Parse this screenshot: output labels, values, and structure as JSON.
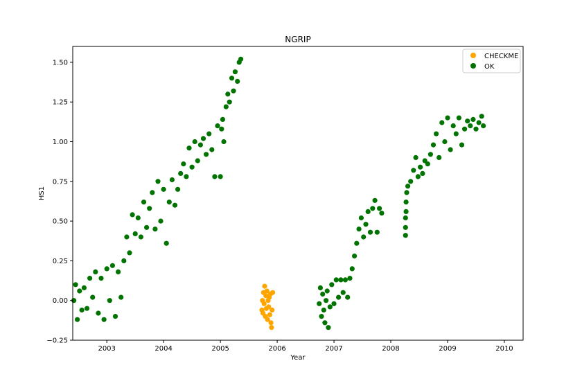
{
  "chart_data": {
    "type": "scatter",
    "title": "NGRIP",
    "xlabel": "Year",
    "ylabel": "HS1",
    "xlim": [
      2002.4,
      2010.33
    ],
    "ylim": [
      -0.25,
      1.6
    ],
    "x_ticks": [
      2003,
      2004,
      2005,
      2006,
      2007,
      2008,
      2009,
      2010
    ],
    "y_ticks": [
      -0.25,
      0.0,
      0.25,
      0.5,
      0.75,
      1.0,
      1.25,
      1.5
    ],
    "y_tick_labels": [
      "−0.25",
      "0.00",
      "0.25",
      "0.50",
      "0.75",
      "1.00",
      "1.25",
      "1.50"
    ],
    "grid": false,
    "legend_position": "top-right",
    "series": [
      {
        "name": "CHECKME",
        "color": "#ffa500",
        "points": [
          [
            2005.73,
            -0.06
          ],
          [
            2005.74,
            0.0
          ],
          [
            2005.75,
            -0.08
          ],
          [
            2005.76,
            0.05
          ],
          [
            2005.77,
            -0.02
          ],
          [
            2005.78,
            0.09
          ],
          [
            2005.79,
            -0.1
          ],
          [
            2005.8,
            0.03
          ],
          [
            2005.81,
            -0.05
          ],
          [
            2005.82,
            0.06
          ],
          [
            2005.83,
            -0.12
          ],
          [
            2005.84,
            0.0
          ],
          [
            2005.85,
            -0.04
          ],
          [
            2005.86,
            0.02
          ],
          [
            2005.87,
            -0.09
          ],
          [
            2005.88,
            0.04
          ],
          [
            2005.89,
            -0.14
          ],
          [
            2005.9,
            -0.17
          ],
          [
            2005.91,
            -0.06
          ],
          [
            2005.92,
            0.05
          ]
        ]
      },
      {
        "name": "OK",
        "color": "#007300",
        "points": [
          [
            2002.42,
            0.0
          ],
          [
            2002.45,
            0.1
          ],
          [
            2002.48,
            -0.12
          ],
          [
            2002.52,
            0.06
          ],
          [
            2002.56,
            -0.06
          ],
          [
            2002.6,
            0.08
          ],
          [
            2002.65,
            -0.05
          ],
          [
            2002.7,
            0.14
          ],
          [
            2002.75,
            0.02
          ],
          [
            2002.8,
            0.18
          ],
          [
            2002.85,
            -0.08
          ],
          [
            2002.9,
            0.14
          ],
          [
            2002.95,
            -0.12
          ],
          [
            2003.0,
            0.2
          ],
          [
            2003.05,
            0.0
          ],
          [
            2003.1,
            0.22
          ],
          [
            2003.15,
            -0.1
          ],
          [
            2003.2,
            0.18
          ],
          [
            2003.25,
            0.02
          ],
          [
            2003.3,
            0.25
          ],
          [
            2003.35,
            0.4
          ],
          [
            2003.4,
            0.3
          ],
          [
            2003.45,
            0.54
          ],
          [
            2003.5,
            0.42
          ],
          [
            2003.55,
            0.52
          ],
          [
            2003.6,
            0.4
          ],
          [
            2003.65,
            0.62
          ],
          [
            2003.7,
            0.46
          ],
          [
            2003.75,
            0.58
          ],
          [
            2003.8,
            0.68
          ],
          [
            2003.85,
            0.45
          ],
          [
            2003.9,
            0.75
          ],
          [
            2003.95,
            0.5
          ],
          [
            2004.0,
            0.7
          ],
          [
            2004.05,
            0.36
          ],
          [
            2004.1,
            0.62
          ],
          [
            2004.15,
            0.76
          ],
          [
            2004.2,
            0.6
          ],
          [
            2004.25,
            0.7
          ],
          [
            2004.3,
            0.8
          ],
          [
            2004.35,
            0.86
          ],
          [
            2004.4,
            0.78
          ],
          [
            2004.45,
            0.96
          ],
          [
            2004.5,
            0.84
          ],
          [
            2004.55,
            1.0
          ],
          [
            2004.6,
            0.88
          ],
          [
            2004.65,
            0.98
          ],
          [
            2004.7,
            1.02
          ],
          [
            2004.75,
            0.92
          ],
          [
            2004.8,
            1.05
          ],
          [
            2004.85,
            0.95
          ],
          [
            2004.9,
            0.78
          ],
          [
            2004.95,
            1.1
          ],
          [
            2005.0,
            0.78
          ],
          [
            2005.02,
            1.08
          ],
          [
            2005.04,
            1.14
          ],
          [
            2005.06,
            1.0
          ],
          [
            2005.1,
            1.22
          ],
          [
            2005.13,
            1.3
          ],
          [
            2005.16,
            1.25
          ],
          [
            2005.2,
            1.4
          ],
          [
            2005.23,
            1.32
          ],
          [
            2005.26,
            1.44
          ],
          [
            2005.3,
            1.38
          ],
          [
            2005.33,
            1.5
          ],
          [
            2005.36,
            1.52
          ],
          [
            2006.74,
            -0.02
          ],
          [
            2006.76,
            0.08
          ],
          [
            2006.78,
            -0.1
          ],
          [
            2006.8,
            0.04
          ],
          [
            2006.82,
            -0.06
          ],
          [
            2006.84,
            -0.14
          ],
          [
            2006.86,
            0.0
          ],
          [
            2006.88,
            0.06
          ],
          [
            2006.9,
            -0.17
          ],
          [
            2006.93,
            -0.04
          ],
          [
            2006.96,
            0.1
          ],
          [
            2007.0,
            -0.02
          ],
          [
            2007.04,
            0.13
          ],
          [
            2007.08,
            0.02
          ],
          [
            2007.12,
            0.13
          ],
          [
            2007.16,
            0.05
          ],
          [
            2007.2,
            0.13
          ],
          [
            2007.24,
            0.02
          ],
          [
            2007.28,
            0.14
          ],
          [
            2007.32,
            0.2
          ],
          [
            2007.36,
            0.28
          ],
          [
            2007.4,
            0.36
          ],
          [
            2007.44,
            0.45
          ],
          [
            2007.48,
            0.52
          ],
          [
            2007.52,
            0.4
          ],
          [
            2007.56,
            0.48
          ],
          [
            2007.6,
            0.56
          ],
          [
            2007.64,
            0.43
          ],
          [
            2007.68,
            0.58
          ],
          [
            2007.72,
            0.63
          ],
          [
            2007.76,
            0.43
          ],
          [
            2007.8,
            0.58
          ],
          [
            2007.84,
            0.55
          ],
          [
            2008.26,
            0.41
          ],
          [
            2008.26,
            0.46
          ],
          [
            2008.26,
            0.52
          ],
          [
            2008.27,
            0.56
          ],
          [
            2008.27,
            0.62
          ],
          [
            2008.28,
            0.68
          ],
          [
            2008.3,
            0.72
          ],
          [
            2008.35,
            0.75
          ],
          [
            2008.4,
            0.82
          ],
          [
            2008.44,
            0.9
          ],
          [
            2008.48,
            0.78
          ],
          [
            2008.52,
            0.84
          ],
          [
            2008.56,
            0.8
          ],
          [
            2008.6,
            0.88
          ],
          [
            2008.65,
            0.86
          ],
          [
            2008.7,
            0.92
          ],
          [
            2008.75,
            0.98
          ],
          [
            2008.8,
            1.05
          ],
          [
            2008.85,
            0.9
          ],
          [
            2008.9,
            1.12
          ],
          [
            2008.95,
            1.0
          ],
          [
            2009.0,
            1.15
          ],
          [
            2009.05,
            0.95
          ],
          [
            2009.1,
            1.1
          ],
          [
            2009.15,
            1.05
          ],
          [
            2009.2,
            1.15
          ],
          [
            2009.25,
            0.98
          ],
          [
            2009.3,
            1.08
          ],
          [
            2009.35,
            1.13
          ],
          [
            2009.4,
            1.1
          ],
          [
            2009.45,
            1.14
          ],
          [
            2009.5,
            1.08
          ],
          [
            2009.55,
            1.12
          ],
          [
            2009.6,
            1.16
          ],
          [
            2009.63,
            1.1
          ]
        ]
      }
    ]
  }
}
